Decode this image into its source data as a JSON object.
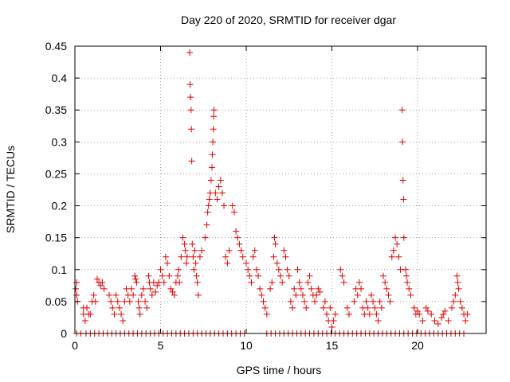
{
  "chart_data": {
    "type": "scatter",
    "title": "Day 220 of 2020, SRMTID for receiver dgar",
    "xlabel": "GPS time / hours",
    "ylabel": "SRMTID / TECUs",
    "xlim": [
      0,
      24
    ],
    "ylim": [
      0,
      0.45
    ],
    "xticks": [
      0,
      5,
      10,
      15,
      20
    ],
    "xtick_labels": [
      "0",
      "5",
      "10",
      "15",
      "20"
    ],
    "yticks": [
      0,
      0.05,
      0.1,
      0.15,
      0.2,
      0.25,
      0.3,
      0.35,
      0.4,
      0.45
    ],
    "ytick_labels": [
      "0",
      "0.05",
      "0.1",
      "0.15",
      "0.2",
      "0.25",
      "0.3",
      "0.35",
      "0.4",
      "0.45"
    ],
    "grid": true,
    "marker": "+",
    "marker_color": "#e00000",
    "series": [
      {
        "name": "SRMTID",
        "points": [
          [
            0.05,
            0.07
          ],
          [
            0.1,
            0.06
          ],
          [
            0.1,
            0.08
          ],
          [
            0.15,
            0.05
          ],
          [
            0.5,
            0.04
          ],
          [
            0.5,
            0.03
          ],
          [
            0.6,
            0.02
          ],
          [
            0.7,
            0.04
          ],
          [
            0.8,
            0.03
          ],
          [
            0.9,
            0.03
          ],
          [
            1.0,
            0.05
          ],
          [
            1.1,
            0.06
          ],
          [
            1.2,
            0.05
          ],
          [
            1.3,
            0.085
          ],
          [
            1.4,
            0.08
          ],
          [
            1.5,
            0.075
          ],
          [
            1.6,
            0.08
          ],
          [
            1.7,
            0.07
          ],
          [
            2.0,
            0.06
          ],
          [
            2.1,
            0.05
          ],
          [
            2.2,
            0.04
          ],
          [
            2.3,
            0.03
          ],
          [
            2.4,
            0.06
          ],
          [
            2.5,
            0.05
          ],
          [
            2.6,
            0.04
          ],
          [
            2.7,
            0.03
          ],
          [
            2.8,
            0.02
          ],
          [
            2.9,
            0.05
          ],
          [
            3.0,
            0.07
          ],
          [
            3.1,
            0.06
          ],
          [
            3.2,
            0.05
          ],
          [
            3.3,
            0.07
          ],
          [
            3.4,
            0.06
          ],
          [
            3.5,
            0.09
          ],
          [
            3.55,
            0.085
          ],
          [
            3.6,
            0.08
          ],
          [
            3.7,
            0.05
          ],
          [
            3.75,
            0.04
          ],
          [
            3.8,
            0.03
          ],
          [
            3.9,
            0.06
          ],
          [
            4.0,
            0.07
          ],
          [
            4.1,
            0.05
          ],
          [
            4.2,
            0.04
          ],
          [
            4.3,
            0.09
          ],
          [
            4.35,
            0.08
          ],
          [
            4.4,
            0.07
          ],
          [
            4.5,
            0.06
          ],
          [
            4.6,
            0.08
          ],
          [
            4.7,
            0.065
          ],
          [
            4.8,
            0.075
          ],
          [
            4.9,
            0.08
          ],
          [
            5.0,
            0.1
          ],
          [
            5.1,
            0.09
          ],
          [
            5.2,
            0.08
          ],
          [
            5.3,
            0.12
          ],
          [
            5.4,
            0.11
          ],
          [
            5.5,
            0.09
          ],
          [
            5.6,
            0.07
          ],
          [
            5.7,
            0.065
          ],
          [
            5.8,
            0.06
          ],
          [
            5.9,
            0.08
          ],
          [
            6.0,
            0.09
          ],
          [
            6.05,
            0.1
          ],
          [
            6.1,
            0.08
          ],
          [
            6.2,
            0.12
          ],
          [
            6.3,
            0.15
          ],
          [
            6.4,
            0.14
          ],
          [
            6.45,
            0.13
          ],
          [
            6.5,
            0.11
          ],
          [
            6.55,
            0.12
          ],
          [
            6.7,
            0.44
          ],
          [
            6.72,
            0.39
          ],
          [
            6.75,
            0.37
          ],
          [
            6.78,
            0.35
          ],
          [
            6.8,
            0.32
          ],
          [
            6.82,
            0.27
          ],
          [
            6.85,
            0.14
          ],
          [
            6.9,
            0.12
          ],
          [
            6.95,
            0.1
          ],
          [
            7.0,
            0.13
          ],
          [
            7.05,
            0.11
          ],
          [
            7.1,
            0.09
          ],
          [
            7.15,
            0.08
          ],
          [
            7.2,
            0.06
          ],
          [
            7.3,
            0.12
          ],
          [
            7.4,
            0.13
          ],
          [
            7.6,
            0.15
          ],
          [
            7.7,
            0.17
          ],
          [
            7.75,
            0.19
          ],
          [
            7.8,
            0.2
          ],
          [
            7.85,
            0.21
          ],
          [
            7.9,
            0.22
          ],
          [
            7.95,
            0.24
          ],
          [
            8.0,
            0.26
          ],
          [
            8.02,
            0.28
          ],
          [
            8.05,
            0.3
          ],
          [
            8.08,
            0.32
          ],
          [
            8.1,
            0.34
          ],
          [
            8.12,
            0.35
          ],
          [
            8.2,
            0.22
          ],
          [
            8.3,
            0.21
          ],
          [
            8.4,
            0.23
          ],
          [
            8.5,
            0.24
          ],
          [
            8.6,
            0.22
          ],
          [
            8.7,
            0.2
          ],
          [
            8.8,
            0.12
          ],
          [
            8.9,
            0.11
          ],
          [
            9.0,
            0.13
          ],
          [
            9.2,
            0.2
          ],
          [
            9.3,
            0.19
          ],
          [
            9.4,
            0.16
          ],
          [
            9.5,
            0.15
          ],
          [
            9.6,
            0.14
          ],
          [
            9.7,
            0.13
          ],
          [
            9.8,
            0.12
          ],
          [
            10.0,
            0.11
          ],
          [
            10.1,
            0.1
          ],
          [
            10.2,
            0.09
          ],
          [
            10.3,
            0.08
          ],
          [
            10.4,
            0.12
          ],
          [
            10.5,
            0.13
          ],
          [
            10.6,
            0.1
          ],
          [
            10.7,
            0.09
          ],
          [
            10.8,
            0.07
          ],
          [
            10.9,
            0.06
          ],
          [
            11.0,
            0.05
          ],
          [
            11.1,
            0.04
          ],
          [
            11.2,
            0.03
          ],
          [
            11.4,
            0.07
          ],
          [
            11.5,
            0.08
          ],
          [
            11.6,
            0.12
          ],
          [
            11.65,
            0.15
          ],
          [
            11.7,
            0.14
          ],
          [
            11.8,
            0.11
          ],
          [
            11.9,
            0.1
          ],
          [
            12.0,
            0.09
          ],
          [
            12.1,
            0.08
          ],
          [
            12.2,
            0.13
          ],
          [
            12.3,
            0.12
          ],
          [
            12.4,
            0.1
          ],
          [
            12.5,
            0.09
          ],
          [
            12.6,
            0.05
          ],
          [
            12.7,
            0.04
          ],
          [
            12.8,
            0.07
          ],
          [
            12.9,
            0.06
          ],
          [
            13.0,
            0.1
          ],
          [
            13.1,
            0.08
          ],
          [
            13.2,
            0.07
          ],
          [
            13.3,
            0.06
          ],
          [
            13.4,
            0.05
          ],
          [
            13.5,
            0.04
          ],
          [
            13.6,
            0.08
          ],
          [
            13.7,
            0.09
          ],
          [
            13.8,
            0.07
          ],
          [
            13.9,
            0.06
          ],
          [
            14.0,
            0.05
          ],
          [
            14.1,
            0.06
          ],
          [
            14.2,
            0.07
          ],
          [
            14.3,
            0.065
          ],
          [
            14.5,
            0.04
          ],
          [
            14.6,
            0.05
          ],
          [
            14.7,
            0.03
          ],
          [
            14.8,
            0.02
          ],
          [
            14.9,
            0.04
          ],
          [
            15.0,
            0.01
          ],
          [
            15.1,
            0.02
          ],
          [
            15.2,
            0.03
          ],
          [
            15.5,
            0.1
          ],
          [
            15.6,
            0.09
          ],
          [
            15.7,
            0.08
          ],
          [
            15.9,
            0.04
          ],
          [
            16.0,
            0.03
          ],
          [
            16.3,
            0.05
          ],
          [
            16.4,
            0.07
          ],
          [
            16.5,
            0.06
          ],
          [
            16.6,
            0.08
          ],
          [
            16.7,
            0.07
          ],
          [
            16.8,
            0.04
          ],
          [
            16.9,
            0.03
          ],
          [
            17.0,
            0.05
          ],
          [
            17.1,
            0.04
          ],
          [
            17.2,
            0.03
          ],
          [
            17.3,
            0.06
          ],
          [
            17.4,
            0.05
          ],
          [
            17.5,
            0.04
          ],
          [
            17.6,
            0.03
          ],
          [
            17.7,
            0.02
          ],
          [
            17.8,
            0.05
          ],
          [
            17.9,
            0.04
          ],
          [
            18.0,
            0.09
          ],
          [
            18.1,
            0.08
          ],
          [
            18.2,
            0.07
          ],
          [
            18.3,
            0.06
          ],
          [
            18.4,
            0.05
          ],
          [
            18.5,
            0.12
          ],
          [
            18.6,
            0.13
          ],
          [
            18.7,
            0.15
          ],
          [
            18.8,
            0.14
          ],
          [
            18.9,
            0.12
          ],
          [
            19.0,
            0.1
          ],
          [
            19.1,
            0.35
          ],
          [
            19.12,
            0.3
          ],
          [
            19.15,
            0.24
          ],
          [
            19.18,
            0.21
          ],
          [
            19.2,
            0.15
          ],
          [
            19.3,
            0.1
          ],
          [
            19.35,
            0.09
          ],
          [
            19.4,
            0.08
          ],
          [
            19.5,
            0.07
          ],
          [
            19.6,
            0.06
          ],
          [
            19.8,
            0.04
          ],
          [
            19.9,
            0.03
          ],
          [
            20.0,
            0.035
          ],
          [
            20.1,
            0.03
          ],
          [
            20.3,
            0.02
          ],
          [
            20.5,
            0.04
          ],
          [
            20.6,
            0.035
          ],
          [
            20.8,
            0.03
          ],
          [
            21.0,
            0.02
          ],
          [
            21.2,
            0.015
          ],
          [
            21.4,
            0.025
          ],
          [
            21.5,
            0.03
          ],
          [
            21.6,
            0.035
          ],
          [
            21.8,
            0.02
          ],
          [
            22.0,
            0.04
          ],
          [
            22.1,
            0.05
          ],
          [
            22.2,
            0.06
          ],
          [
            22.3,
            0.09
          ],
          [
            22.35,
            0.08
          ],
          [
            22.4,
            0.07
          ],
          [
            22.5,
            0.05
          ],
          [
            22.6,
            0.04
          ],
          [
            22.7,
            0.03
          ],
          [
            22.8,
            0.02
          ],
          [
            22.9,
            0.03
          ]
        ],
        "zero_line_x": [
          0.1,
          0.35,
          0.65,
          0.9,
          1.15,
          1.4,
          1.65,
          1.9,
          2.15,
          2.4,
          2.65,
          2.9,
          3.15,
          3.4,
          3.65,
          3.9,
          4.15,
          4.4,
          4.65,
          4.9,
          5.15,
          5.4,
          5.65,
          5.9,
          6.15,
          6.4,
          6.65,
          6.9,
          7.15,
          7.4,
          7.65,
          7.9,
          8.15,
          8.4,
          8.65,
          8.9,
          9.15,
          9.4,
          9.65,
          9.9,
          11.2,
          11.45,
          11.7,
          11.95,
          12.2,
          12.45,
          12.7,
          12.95,
          13.2,
          13.45,
          13.7,
          13.95,
          14.2,
          14.45,
          14.7,
          14.95,
          15.2,
          15.45,
          15.7,
          15.95,
          16.2,
          16.45,
          16.7,
          16.95,
          17.2,
          17.45,
          17.7,
          17.95,
          18.2,
          18.45,
          18.7,
          18.95,
          19.2,
          19.45,
          19.7,
          19.95,
          20.2,
          20.45,
          20.7,
          20.95,
          21.2,
          21.45,
          21.7,
          21.95,
          22.2,
          22.45,
          22.7
        ]
      }
    ]
  }
}
